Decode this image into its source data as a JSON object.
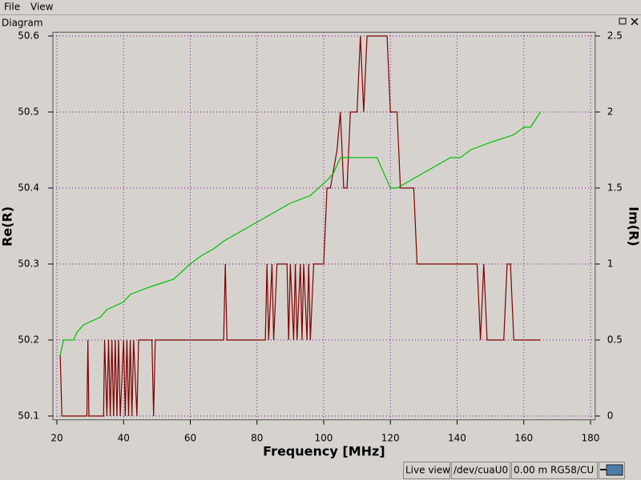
{
  "menu": {
    "items": [
      "File",
      "View"
    ]
  },
  "panel": {
    "title": "Diagram"
  },
  "chart_data": {
    "type": "line",
    "xlabel": "Frequency [MHz]",
    "ylabel": "Re(R)",
    "y2label": "Im(R)",
    "xlim": [
      18.8,
      181.4
    ],
    "ylim": [
      50.095,
      50.605
    ],
    "y2lim": [
      -0.025,
      2.525
    ],
    "xticks": [
      20,
      40,
      60,
      80,
      100,
      120,
      140,
      160,
      180
    ],
    "yticks": [
      50.1,
      50.2,
      50.3,
      50.4,
      50.5,
      50.6
    ],
    "y2ticks": [
      0,
      0.5,
      1,
      1.5,
      2,
      2.5
    ],
    "grid": true,
    "series": [
      {
        "color": "#800000",
        "x": [
          21,
          21.5,
          22,
          29,
          29.3,
          29.6,
          34,
          34.3,
          35,
          35.5,
          36,
          36.5,
          37,
          37.5,
          38,
          38.5,
          39,
          40,
          40.5,
          41,
          41.5,
          42,
          42.5,
          43,
          44,
          44.5,
          45,
          48.5,
          49,
          49.5,
          70,
          70.5,
          71,
          82.5,
          83,
          83.5,
          84.5,
          85,
          86,
          89,
          89.5,
          90,
          91,
          91.5,
          92,
          93,
          93.5,
          94,
          95,
          95.5,
          96,
          97,
          100,
          101,
          102,
          104,
          105,
          106,
          107,
          108,
          110,
          111,
          112,
          113,
          114,
          119,
          120,
          122,
          123,
          127,
          128,
          146,
          147,
          148,
          149,
          150,
          154,
          155,
          156,
          157,
          165
        ],
        "values": [
          50.18,
          50.1,
          50.1,
          50.1,
          50.2,
          50.1,
          50.1,
          50.2,
          50.1,
          50.2,
          50.1,
          50.2,
          50.1,
          50.2,
          50.1,
          50.2,
          50.1,
          50.2,
          50.1,
          50.2,
          50.1,
          50.2,
          50.1,
          50.2,
          50.1,
          50.2,
          50.2,
          50.2,
          50.1,
          50.2,
          50.2,
          50.3,
          50.2,
          50.2,
          50.3,
          50.2,
          50.3,
          50.2,
          50.3,
          50.3,
          50.2,
          50.3,
          50.2,
          50.3,
          50.2,
          50.3,
          50.2,
          50.3,
          50.2,
          50.3,
          50.2,
          50.3,
          50.3,
          50.4,
          50.4,
          50.45,
          50.5,
          50.4,
          50.4,
          50.5,
          50.5,
          50.6,
          50.5,
          50.6,
          50.6,
          50.6,
          50.5,
          50.5,
          50.4,
          50.4,
          50.3,
          50.3,
          50.2,
          50.3,
          50.2,
          50.2,
          50.2,
          50.3,
          50.3,
          50.2,
          50.2
        ]
      },
      {
        "color": "#00c000",
        "axis": "y2",
        "x": [
          21,
          22,
          25,
          26,
          28,
          33,
          35,
          40,
          42,
          48,
          55,
          60,
          63,
          67,
          70,
          74,
          78,
          82,
          86,
          90,
          96,
          101,
          103,
          105,
          108,
          116,
          118,
          120,
          122,
          126,
          130,
          134,
          138,
          141,
          144,
          150,
          157,
          160,
          162,
          165
        ],
        "values": [
          0.4,
          0.5,
          0.5,
          0.55,
          0.6,
          0.65,
          0.7,
          0.75,
          0.8,
          0.85,
          0.9,
          1.0,
          1.05,
          1.1,
          1.15,
          1.2,
          1.25,
          1.3,
          1.35,
          1.4,
          1.45,
          1.55,
          1.6,
          1.7,
          1.7,
          1.7,
          1.6,
          1.5,
          1.5,
          1.55,
          1.6,
          1.65,
          1.7,
          1.7,
          1.75,
          1.8,
          1.85,
          1.9,
          1.9,
          2.0
        ]
      }
    ]
  },
  "status_bar": {
    "items": [
      "Live view",
      "/dev/cuaU0",
      "0.00 m RG58/CU"
    ]
  }
}
